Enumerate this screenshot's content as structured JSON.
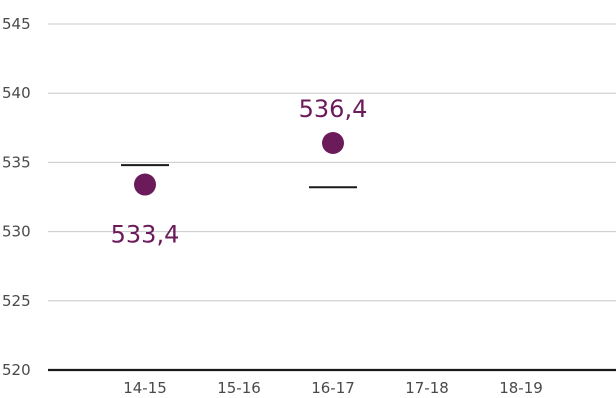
{
  "chart_data": {
    "type": "scatter",
    "title": "",
    "xlabel": "",
    "ylabel": "",
    "categories": [
      "14-15",
      "15-16",
      "16-17",
      "17-18",
      "18-19"
    ],
    "ylim": [
      520,
      545
    ],
    "yticks": [
      520,
      525,
      530,
      535,
      540,
      545
    ],
    "ytick_labels": [
      "520",
      "525",
      "530",
      "535",
      "540",
      "545"
    ],
    "grid": true,
    "series": [
      {
        "values": [
          533.4,
          null,
          536.4,
          null,
          null
        ],
        "labels": [
          "533,4",
          "",
          "536,4",
          "",
          ""
        ],
        "color": "#6b1a5a"
      }
    ],
    "reference_values": [
      534.8,
      null,
      533.2,
      null,
      null
    ],
    "reference_color": "#1a1a1a"
  }
}
